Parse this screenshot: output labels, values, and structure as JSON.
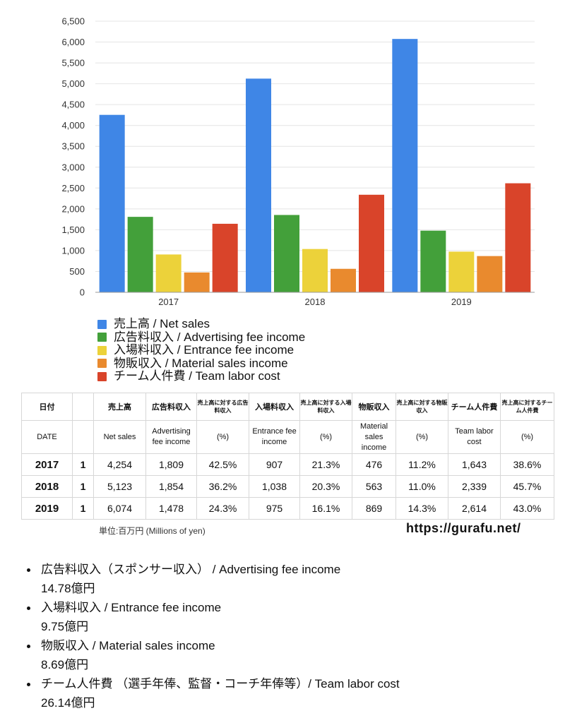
{
  "chart_data": {
    "type": "bar",
    "categories": [
      "2017",
      "2018",
      "2019"
    ],
    "ylim": [
      0,
      6500
    ],
    "y_ticks": [
      "6,500",
      "6,000",
      "5,500",
      "5,000",
      "4,500",
      "4,000",
      "3,500",
      "3,000",
      "2,500",
      "2,000",
      "1,500",
      "1,000",
      "500",
      "0"
    ],
    "y_tick_values": [
      6500,
      6000,
      5500,
      5000,
      4500,
      4000,
      3500,
      3000,
      2500,
      2000,
      1500,
      1000,
      500,
      0
    ],
    "grid": true,
    "legend_position": "bottom-left",
    "series": [
      {
        "name": "売上高 / Net sales",
        "color": "#3f86e6",
        "values": [
          4254,
          5123,
          6074
        ]
      },
      {
        "name": "広告料収入 / Advertising fee income",
        "color": "#43a03a",
        "values": [
          1809,
          1854,
          1478
        ]
      },
      {
        "name": "入場料収入 / Entrance fee income",
        "color": "#ecd23a",
        "values": [
          907,
          1038,
          975
        ]
      },
      {
        "name": "物販収入 / Material sales income",
        "color": "#e98a2e",
        "values": [
          476,
          563,
          869
        ]
      },
      {
        "name": "チーム人件費 / Team labor cost",
        "color": "#d9442a",
        "values": [
          1643,
          2339,
          2614
        ]
      }
    ]
  },
  "table": {
    "header1": [
      "日付",
      "",
      "売上高",
      "広告料収入",
      "売上高に対する広告料収入",
      "入場料収入",
      "売上高に対する入場料収入",
      "物販収入",
      "売上高に対する物販収入",
      "チーム人件費",
      "売上高に対するチーム人件費"
    ],
    "header2": [
      "DATE",
      "",
      "Net sales",
      "Advertising fee income",
      "(%)",
      "Entrance fee income",
      "(%)",
      "Material sales income",
      "(%)",
      "Team labor cost",
      "(%)"
    ],
    "rows": [
      [
        "2017",
        "1",
        "4,254",
        "1,809",
        "42.5%",
        "907",
        "21.3%",
        "476",
        "11.2%",
        "1,643",
        "38.6%"
      ],
      [
        "2018",
        "1",
        "5,123",
        "1,854",
        "36.2%",
        "1,038",
        "20.3%",
        "563",
        "11.0%",
        "2,339",
        "45.7%"
      ],
      [
        "2019",
        "1",
        "6,074",
        "1,478",
        "24.3%",
        "975",
        "16.1%",
        "869",
        "14.3%",
        "2,614",
        "43.0%"
      ]
    ]
  },
  "unit_note": "単位:百万円 (Millions of yen)",
  "site_url": "https://gurafu.net/",
  "notes": [
    {
      "label": "広告料収入（スポンサー収入） / Advertising fee income",
      "amount": "14.78億円"
    },
    {
      "label": "入場料収入 / Entrance fee income",
      "amount": "9.75億円"
    },
    {
      "label": "物販収入 / Material sales income",
      "amount": "8.69億円"
    },
    {
      "label": "チーム人件費 （選手年俸、監督・コーチ年俸等）/ Team labor cost",
      "amount": "26.14億円"
    }
  ]
}
